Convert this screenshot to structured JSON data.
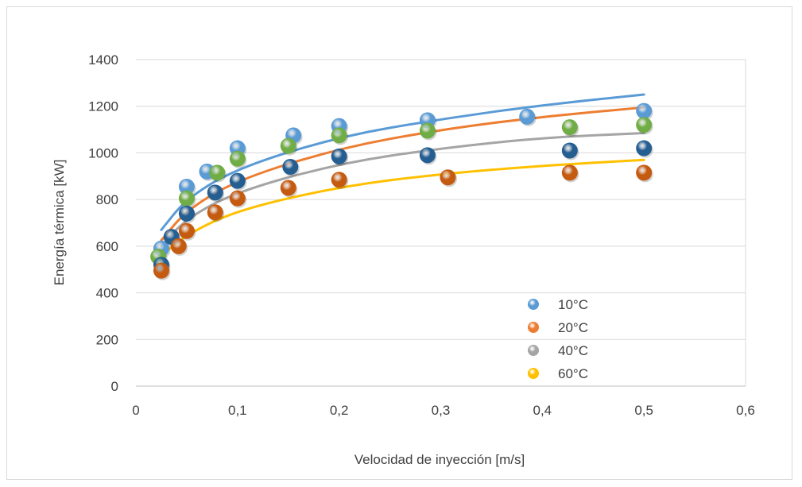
{
  "chart_data": {
    "type": "scatter",
    "title": "",
    "xlabel": "Velocidad de inyección [m/s]",
    "ylabel": "Energía térmica [kW]",
    "xlim": [
      0,
      0.6
    ],
    "ylim": [
      0,
      1400
    ],
    "x_ticks": [
      "0",
      "0,1",
      "0,2",
      "0,3",
      "0,4",
      "0,5",
      "0,6"
    ],
    "y_ticks": [
      "0",
      "200",
      "400",
      "600",
      "800",
      "1000",
      "1200",
      "1400"
    ],
    "grid": "horizontal",
    "legend_position": "bottom-right",
    "series": [
      {
        "name": "10°C",
        "color": "#5b9bd5",
        "trend_color": "#5b9bd5",
        "points": [
          [
            0.025,
            590
          ],
          [
            0.05,
            855
          ],
          [
            0.07,
            920
          ],
          [
            0.1,
            1020
          ],
          [
            0.155,
            1075
          ],
          [
            0.2,
            1115
          ],
          [
            0.287,
            1140
          ],
          [
            0.385,
            1155
          ],
          [
            0.5,
            1180
          ]
        ],
        "trend": [
          [
            0.025,
            670
          ],
          [
            0.05,
            805
          ],
          [
            0.1,
            935
          ],
          [
            0.2,
            1070
          ],
          [
            0.3,
            1145
          ],
          [
            0.4,
            1205
          ],
          [
            0.5,
            1250
          ]
        ]
      },
      {
        "name": "20°C",
        "color": "#70ad47",
        "trend_color": "#ed7d31",
        "points": [
          [
            0.022,
            555
          ],
          [
            0.05,
            805
          ],
          [
            0.08,
            915
          ],
          [
            0.1,
            975
          ],
          [
            0.15,
            1030
          ],
          [
            0.2,
            1075
          ],
          [
            0.287,
            1095
          ],
          [
            0.427,
            1110
          ],
          [
            0.5,
            1120
          ]
        ],
        "trend": [
          [
            0.025,
            625
          ],
          [
            0.05,
            755
          ],
          [
            0.1,
            885
          ],
          [
            0.2,
            1020
          ],
          [
            0.3,
            1100
          ],
          [
            0.4,
            1155
          ],
          [
            0.5,
            1195
          ]
        ]
      },
      {
        "name": "40°C",
        "color": "#255e91",
        "trend_color": "#a5a5a5",
        "points": [
          [
            0.025,
            520
          ],
          [
            0.035,
            640
          ],
          [
            0.05,
            740
          ],
          [
            0.078,
            830
          ],
          [
            0.1,
            880
          ],
          [
            0.152,
            940
          ],
          [
            0.2,
            985
          ],
          [
            0.287,
            990
          ],
          [
            0.427,
            1010
          ],
          [
            0.5,
            1020
          ]
        ],
        "trend": [
          [
            0.025,
            600
          ],
          [
            0.05,
            720
          ],
          [
            0.1,
            835
          ],
          [
            0.2,
            955
          ],
          [
            0.3,
            1020
          ],
          [
            0.4,
            1065
          ],
          [
            0.5,
            1085
          ]
        ]
      },
      {
        "name": "60°C",
        "color": "#c55a11",
        "trend_color": "#ffc000",
        "points": [
          [
            0.025,
            495
          ],
          [
            0.042,
            600
          ],
          [
            0.05,
            665
          ],
          [
            0.078,
            745
          ],
          [
            0.1,
            805
          ],
          [
            0.15,
            850
          ],
          [
            0.2,
            885
          ],
          [
            0.307,
            895
          ],
          [
            0.427,
            915
          ],
          [
            0.5,
            915
          ]
        ],
        "trend": [
          [
            0.025,
            560
          ],
          [
            0.05,
            650
          ],
          [
            0.1,
            755
          ],
          [
            0.2,
            855
          ],
          [
            0.3,
            910
          ],
          [
            0.4,
            945
          ],
          [
            0.5,
            970
          ]
        ]
      }
    ],
    "legend": [
      {
        "label": "10°C",
        "color": "#5b9bd5"
      },
      {
        "label": "20°C",
        "color": "#ed7d31"
      },
      {
        "label": "40°C",
        "color": "#a5a5a5"
      },
      {
        "label": "60°C",
        "color": "#ffc000"
      }
    ]
  }
}
